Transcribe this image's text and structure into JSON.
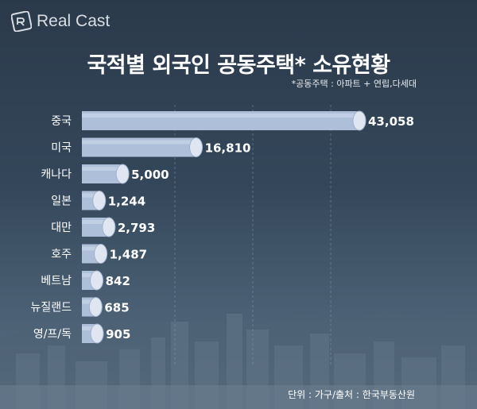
{
  "brand": {
    "name": "Real Cast",
    "logo_icon": "rc-logo-icon"
  },
  "header": {
    "title": "국적별 외국인 공동주택* 소유현황",
    "note": "*공동주택 : 아파트 + 연립,다세대"
  },
  "footer": {
    "source": "단위 : 가구/출처 : 한국부동산원"
  },
  "colors": {
    "bar_body": "#aebfd9",
    "bar_cap": "#dfe6f1",
    "text": "#ffffff"
  },
  "chart_data": {
    "type": "bar",
    "orientation": "horizontal",
    "title": "국적별 외국인 공동주택* 소유현황",
    "categories": [
      "중국",
      "미국",
      "캐나다",
      "일본",
      "대만",
      "호주",
      "베트남",
      "뉴질랜드",
      "영/프/독"
    ],
    "values": [
      43058,
      16810,
      5000,
      1244,
      2793,
      1487,
      842,
      685,
      905
    ],
    "value_labels": [
      "43,058",
      "16,810",
      "5,000",
      "1,244",
      "2,793",
      "1,487",
      "842",
      "685",
      "905"
    ],
    "unit": "가구",
    "grid": true
  }
}
